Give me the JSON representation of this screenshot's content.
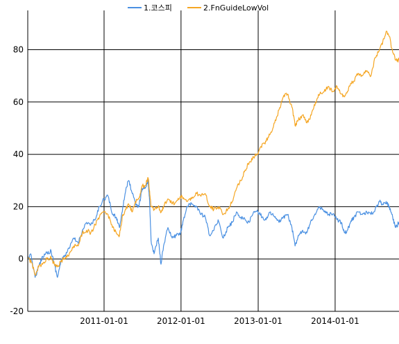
{
  "chart_data": {
    "type": "line",
    "title": "",
    "xlabel": "",
    "ylabel": "",
    "xlim": [
      "2010-01-04",
      "2014-10-31"
    ],
    "ylim": [
      -20,
      95
    ],
    "xticks": [
      "2011-01-01",
      "2012-01-01",
      "2013-01-01",
      "2014-01-01"
    ],
    "yticks": [
      -20,
      0,
      20,
      40,
      60,
      80
    ],
    "grid": true,
    "legend_position": "top-center",
    "series": [
      {
        "name": "1.코스피",
        "color": "#4a90e2",
        "points": [
          [
            "2010-01-04",
            0
          ],
          [
            "2010-01-20",
            1.5
          ],
          [
            "2010-02-08",
            -7
          ],
          [
            "2010-02-25",
            -3
          ],
          [
            "2010-03-15",
            1
          ],
          [
            "2010-04-05",
            2.5
          ],
          [
            "2010-04-25",
            3
          ],
          [
            "2010-05-10",
            -2
          ],
          [
            "2010-05-25",
            -7
          ],
          [
            "2010-06-10",
            -1
          ],
          [
            "2010-06-30",
            1.5
          ],
          [
            "2010-07-20",
            4
          ],
          [
            "2010-08-10",
            8
          ],
          [
            "2010-08-31",
            6
          ],
          [
            "2010-09-20",
            11
          ],
          [
            "2010-10-10",
            14
          ],
          [
            "2010-10-30",
            13
          ],
          [
            "2010-11-20",
            15
          ],
          [
            "2010-12-10",
            20
          ],
          [
            "2010-12-31",
            23
          ],
          [
            "2011-01-20",
            24
          ],
          [
            "2011-02-10",
            17
          ],
          [
            "2011-02-28",
            16
          ],
          [
            "2011-03-15",
            12
          ],
          [
            "2011-03-31",
            20
          ],
          [
            "2011-04-15",
            27
          ],
          [
            "2011-04-28",
            30
          ],
          [
            "2011-05-15",
            25
          ],
          [
            "2011-05-30",
            21
          ],
          [
            "2011-06-15",
            20
          ],
          [
            "2011-06-30",
            27
          ],
          [
            "2011-07-15",
            27
          ],
          [
            "2011-07-29",
            30
          ],
          [
            "2011-08-05",
            22
          ],
          [
            "2011-08-12",
            7
          ],
          [
            "2011-08-26",
            2
          ],
          [
            "2011-09-15",
            8
          ],
          [
            "2011-09-28",
            -2
          ],
          [
            "2011-10-10",
            5
          ],
          [
            "2011-10-31",
            12
          ],
          [
            "2011-11-20",
            8
          ],
          [
            "2011-12-10",
            9
          ],
          [
            "2011-12-30",
            10
          ],
          [
            "2012-01-15",
            16
          ],
          [
            "2012-02-01",
            20
          ],
          [
            "2012-02-20",
            21
          ],
          [
            "2012-03-15",
            20
          ],
          [
            "2012-04-05",
            17
          ],
          [
            "2012-04-25",
            16
          ],
          [
            "2012-05-15",
            9
          ],
          [
            "2012-06-05",
            11
          ],
          [
            "2012-06-25",
            15
          ],
          [
            "2012-07-20",
            8
          ],
          [
            "2012-08-10",
            12
          ],
          [
            "2012-08-31",
            14
          ],
          [
            "2012-09-20",
            18
          ],
          [
            "2012-10-10",
            16
          ],
          [
            "2012-10-31",
            15
          ],
          [
            "2012-11-20",
            14
          ],
          [
            "2012-12-10",
            18
          ],
          [
            "2012-12-31",
            18
          ],
          [
            "2013-01-20",
            16
          ],
          [
            "2013-02-08",
            15
          ],
          [
            "2013-02-28",
            18
          ],
          [
            "2013-03-20",
            16
          ],
          [
            "2013-04-10",
            14
          ],
          [
            "2013-04-30",
            16
          ],
          [
            "2013-05-20",
            17
          ],
          [
            "2013-06-10",
            12
          ],
          [
            "2013-06-25",
            5
          ],
          [
            "2013-07-10",
            9
          ],
          [
            "2013-07-31",
            11
          ],
          [
            "2013-08-20",
            10
          ],
          [
            "2013-09-10",
            15
          ],
          [
            "2013-09-30",
            17
          ],
          [
            "2013-10-20",
            20
          ],
          [
            "2013-11-10",
            18
          ],
          [
            "2013-11-30",
            17
          ],
          [
            "2013-12-20",
            17
          ],
          [
            "2014-01-10",
            15
          ],
          [
            "2014-01-31",
            14
          ],
          [
            "2014-02-15",
            10
          ],
          [
            "2014-02-28",
            11
          ],
          [
            "2014-03-15",
            14
          ],
          [
            "2014-03-31",
            16
          ],
          [
            "2014-04-20",
            18
          ],
          [
            "2014-05-10",
            17
          ],
          [
            "2014-05-31",
            18
          ],
          [
            "2014-06-20",
            17
          ],
          [
            "2014-07-10",
            19
          ],
          [
            "2014-07-31",
            22
          ],
          [
            "2014-08-15",
            21
          ],
          [
            "2014-08-31",
            22
          ],
          [
            "2014-09-15",
            20
          ],
          [
            "2014-10-01",
            16
          ],
          [
            "2014-10-15",
            12
          ],
          [
            "2014-10-31",
            14
          ]
        ]
      },
      {
        "name": "2.FnGuideLowVol",
        "color": "#f5a623",
        "points": [
          [
            "2010-01-04",
            0
          ],
          [
            "2010-01-20",
            -1
          ],
          [
            "2010-02-08",
            -6
          ],
          [
            "2010-02-25",
            -3
          ],
          [
            "2010-03-15",
            -2
          ],
          [
            "2010-04-05",
            0
          ],
          [
            "2010-04-25",
            0.5
          ],
          [
            "2010-05-10",
            -2
          ],
          [
            "2010-05-25",
            -3
          ],
          [
            "2010-06-10",
            -1
          ],
          [
            "2010-06-30",
            0.5
          ],
          [
            "2010-07-20",
            2
          ],
          [
            "2010-08-10",
            5
          ],
          [
            "2010-08-31",
            5
          ],
          [
            "2010-09-20",
            10
          ],
          [
            "2010-10-10",
            11
          ],
          [
            "2010-10-30",
            10
          ],
          [
            "2010-11-20",
            13
          ],
          [
            "2010-12-10",
            16
          ],
          [
            "2010-12-31",
            18
          ],
          [
            "2011-01-20",
            17
          ],
          [
            "2011-02-10",
            12
          ],
          [
            "2011-02-28",
            10
          ],
          [
            "2011-03-15",
            9
          ],
          [
            "2011-03-31",
            17
          ],
          [
            "2011-04-15",
            19
          ],
          [
            "2011-04-28",
            21
          ],
          [
            "2011-05-15",
            18
          ],
          [
            "2011-05-30",
            22
          ],
          [
            "2011-06-15",
            23
          ],
          [
            "2011-06-30",
            28
          ],
          [
            "2011-07-15",
            28
          ],
          [
            "2011-07-29",
            31
          ],
          [
            "2011-08-05",
            26
          ],
          [
            "2011-08-12",
            20
          ],
          [
            "2011-08-26",
            19
          ],
          [
            "2011-09-15",
            20
          ],
          [
            "2011-09-28",
            18
          ],
          [
            "2011-10-10",
            20
          ],
          [
            "2011-10-31",
            23
          ],
          [
            "2011-11-20",
            21
          ],
          [
            "2011-12-10",
            22
          ],
          [
            "2011-12-30",
            24
          ],
          [
            "2012-01-15",
            23
          ],
          [
            "2012-02-01",
            22
          ],
          [
            "2012-02-20",
            23
          ],
          [
            "2012-03-15",
            25
          ],
          [
            "2012-04-05",
            24
          ],
          [
            "2012-04-25",
            25
          ],
          [
            "2012-05-15",
            20
          ],
          [
            "2012-06-05",
            19
          ],
          [
            "2012-06-25",
            20
          ],
          [
            "2012-07-20",
            17
          ],
          [
            "2012-08-10",
            19
          ],
          [
            "2012-08-31",
            22
          ],
          [
            "2012-09-20",
            27
          ],
          [
            "2012-10-10",
            30
          ],
          [
            "2012-10-31",
            34
          ],
          [
            "2012-11-20",
            37
          ],
          [
            "2012-12-10",
            39
          ],
          [
            "2012-12-31",
            40
          ],
          [
            "2013-01-20",
            44
          ],
          [
            "2013-02-08",
            45
          ],
          [
            "2013-02-28",
            48
          ],
          [
            "2013-03-20",
            52
          ],
          [
            "2013-04-10",
            57
          ],
          [
            "2013-04-30",
            62
          ],
          [
            "2013-05-20",
            63
          ],
          [
            "2013-06-10",
            58
          ],
          [
            "2013-06-25",
            51
          ],
          [
            "2013-07-10",
            53
          ],
          [
            "2013-07-31",
            55
          ],
          [
            "2013-08-20",
            52
          ],
          [
            "2013-09-10",
            55
          ],
          [
            "2013-09-30",
            60
          ],
          [
            "2013-10-20",
            63
          ],
          [
            "2013-11-10",
            64
          ],
          [
            "2013-11-30",
            66
          ],
          [
            "2013-12-20",
            64
          ],
          [
            "2014-01-10",
            66
          ],
          [
            "2014-01-31",
            63
          ],
          [
            "2014-02-15",
            62
          ],
          [
            "2014-02-28",
            64
          ],
          [
            "2014-03-15",
            67
          ],
          [
            "2014-03-31",
            68
          ],
          [
            "2014-04-20",
            71
          ],
          [
            "2014-05-10",
            70
          ],
          [
            "2014-05-31",
            72
          ],
          [
            "2014-06-20",
            70
          ],
          [
            "2014-07-10",
            77
          ],
          [
            "2014-07-31",
            80
          ],
          [
            "2014-08-15",
            83
          ],
          [
            "2014-08-31",
            87
          ],
          [
            "2014-09-15",
            85
          ],
          [
            "2014-10-01",
            79
          ],
          [
            "2014-10-15",
            76
          ],
          [
            "2014-10-31",
            76
          ]
        ]
      }
    ]
  }
}
